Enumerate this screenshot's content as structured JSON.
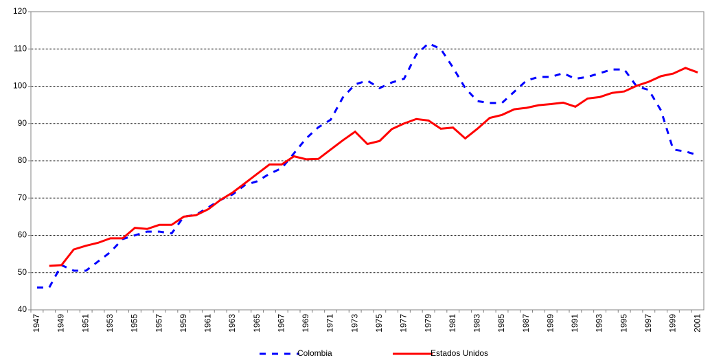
{
  "chart_data": {
    "type": "line",
    "categories": [
      "1947",
      null,
      "1949",
      null,
      "1951",
      null,
      "1953",
      null,
      "1955",
      null,
      "1957",
      null,
      "1959",
      null,
      "1961",
      null,
      "1963",
      null,
      "1965",
      null,
      "1967",
      null,
      "1969",
      null,
      "1971",
      null,
      "1973",
      null,
      "1975",
      null,
      "1977",
      null,
      "1979",
      null,
      "1981",
      null,
      "1983",
      null,
      "1985",
      null,
      "1987",
      null,
      "1989",
      null,
      "1991",
      null,
      "1993",
      null,
      "1995",
      null,
      "1997",
      null,
      "1999",
      null,
      "2001"
    ],
    "series": [
      {
        "name": "Colombia",
        "color": "#0000ff",
        "style": "dashed",
        "values": [
          46,
          46,
          52,
          50.5,
          50.5,
          53,
          55.5,
          59,
          60,
          61,
          61,
          60.5,
          65,
          65.5,
          67.5,
          69.5,
          71,
          73.5,
          74.5,
          76.5,
          78,
          82,
          86,
          89,
          91,
          97,
          100.5,
          101.5,
          99.5,
          101,
          102,
          108.5,
          111.5,
          110,
          105,
          99.5,
          96,
          95.5,
          95.5,
          98.5,
          101.5,
          102.5,
          102.5,
          103.5,
          102,
          102.5,
          103.5,
          104.5,
          104.5,
          100,
          99,
          93.5,
          83,
          82.5,
          81.5
        ]
      },
      {
        "name": "Estados Unidos",
        "color": "#ff0000",
        "style": "solid",
        "values": [
          null,
          51.8,
          52,
          56.2,
          57.2,
          58,
          59.2,
          59.2,
          62,
          61.7,
          62.8,
          62.8,
          65,
          65.4,
          67,
          69.5,
          71.5,
          74,
          76.5,
          79,
          79,
          81.2,
          80.4,
          80.5,
          83,
          85.5,
          87.8,
          84.5,
          85.3,
          88.5,
          90,
          91.2,
          90.8,
          88.6,
          88.9,
          86,
          88.6,
          91.5,
          92.3,
          93.8,
          94.2,
          94.9,
          95.2,
          95.6,
          94.5,
          96.7,
          97.1,
          98.2,
          98.6,
          100.1,
          101.2,
          102.7,
          103.4,
          104.9,
          103.7
        ]
      }
    ],
    "ylim": [
      40,
      120
    ],
    "yticks": [
      40,
      50,
      60,
      70,
      80,
      90,
      100,
      110,
      120
    ],
    "grid": true,
    "legend": "bottom"
  }
}
